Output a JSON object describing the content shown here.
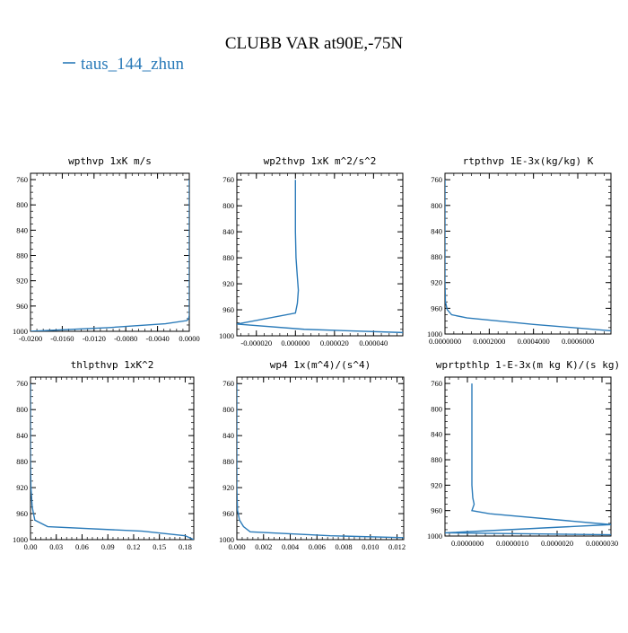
{
  "title": "CLUBB VAR at90E,-75N",
  "legend": {
    "label": "taus_144_zhun",
    "color": "#2b7bb9"
  },
  "chart_data": [
    {
      "type": "line",
      "title": "wpthvp  1xK m/s",
      "ylim": [
        1000,
        750
      ],
      "yticks": [
        "760",
        "800",
        "840",
        "880",
        "920",
        "960",
        "1000"
      ],
      "xlim": [
        -0.02,
        0.0
      ],
      "xticks": [
        {
          "value": -0.02,
          "label": "-0.0200"
        },
        {
          "value": -0.016,
          "label": "-0.0160"
        },
        {
          "value": -0.012,
          "label": "-0.0120"
        },
        {
          "value": -0.008,
          "label": "-0.0080"
        },
        {
          "value": -0.004,
          "label": "-0.0040"
        },
        {
          "value": 0.0,
          "label": "0.0000"
        }
      ],
      "series": [
        {
          "x": [
            0.0,
            0.0,
            0.0,
            0.0,
            0.0,
            0.0,
            0.0,
            -0.0001,
            -0.0003,
            -0.003,
            -0.01,
            -0.02
          ],
          "y": [
            760,
            800,
            840,
            880,
            920,
            960,
            975,
            980,
            983,
            988,
            994,
            1000
          ]
        }
      ]
    },
    {
      "type": "line",
      "title": "wp2thvp  1xK m^2/s^2",
      "ylim": [
        1000,
        750
      ],
      "yticks": [
        "760",
        "800",
        "840",
        "880",
        "920",
        "960",
        "1000"
      ],
      "xlim": [
        -3e-05,
        5.5e-05
      ],
      "xticks": [
        {
          "value": -2e-05,
          "label": "-0.000020"
        },
        {
          "value": 0.0,
          "label": "0.000000"
        },
        {
          "value": 2e-05,
          "label": "0.000020"
        },
        {
          "value": 4e-05,
          "label": "0.000040"
        }
      ],
      "series": [
        {
          "x": [
            0.0,
            0.0,
            0.0,
            3e-07,
            1e-06,
            1.5e-06,
            1e-06,
            0.0,
            -3e-05,
            4.5e-06,
            5.5e-05
          ],
          "y": [
            760,
            800,
            840,
            880,
            910,
            930,
            950,
            965,
            982,
            990,
            995
          ]
        }
      ]
    },
    {
      "type": "line",
      "title": "rtpthvp  1E-3x(kg/kg) K",
      "ylim": [
        1000,
        750
      ],
      "yticks": [
        "760",
        "800",
        "840",
        "880",
        "920",
        "960",
        "1000"
      ],
      "xlim": [
        0.0,
        0.00075
      ],
      "xticks": [
        {
          "value": 0.0,
          "label": "0.0000000"
        },
        {
          "value": 0.0002,
          "label": "0.0002000"
        },
        {
          "value": 0.0004,
          "label": "0.0004000"
        },
        {
          "value": 0.0006,
          "label": "0.0006000"
        }
      ],
      "series": [
        {
          "x": [
            0.0,
            0.0,
            0.0,
            0.0,
            0.0,
            2e-06,
            1e-05,
            3e-05,
            0.0001,
            0.0004,
            0.00075
          ],
          "y": [
            760,
            800,
            840,
            880,
            920,
            950,
            962,
            970,
            975,
            985,
            995
          ]
        }
      ]
    },
    {
      "type": "line",
      "title": "thlpthvp  1xK^2",
      "ylim": [
        1000,
        750
      ],
      "yticks": [
        "760",
        "800",
        "840",
        "880",
        "920",
        "960",
        "1000"
      ],
      "xlim": [
        0.0,
        0.19
      ],
      "xticks": [
        {
          "value": 0.0,
          "label": "0.00"
        },
        {
          "value": 0.03,
          "label": "0.03"
        },
        {
          "value": 0.06,
          "label": "0.06"
        },
        {
          "value": 0.09,
          "label": "0.09"
        },
        {
          "value": 0.12,
          "label": "0.12"
        },
        {
          "value": 0.15,
          "label": "0.15"
        },
        {
          "value": 0.18,
          "label": "0.18"
        }
      ],
      "series": [
        {
          "x": [
            0.0,
            0.0,
            0.0,
            0.0,
            0.0005,
            0.002,
            0.005,
            0.02,
            0.13,
            0.18,
            0.19
          ],
          "y": [
            760,
            800,
            840,
            880,
            920,
            950,
            970,
            980,
            987,
            994,
            1000
          ]
        }
      ]
    },
    {
      "type": "line",
      "title": "wp4  1x(m^4)/(s^4)",
      "ylim": [
        1000,
        750
      ],
      "yticks": [
        "760",
        "800",
        "840",
        "880",
        "920",
        "960",
        "1000"
      ],
      "xlim": [
        0.0,
        0.0125
      ],
      "xticks": [
        {
          "value": 0.0,
          "label": "0.000"
        },
        {
          "value": 0.002,
          "label": "0.002"
        },
        {
          "value": 0.004,
          "label": "0.004"
        },
        {
          "value": 0.006,
          "label": "0.006"
        },
        {
          "value": 0.008,
          "label": "0.008"
        },
        {
          "value": 0.01,
          "label": "0.010"
        },
        {
          "value": 0.012,
          "label": "0.012"
        }
      ],
      "series": [
        {
          "x": [
            0.0,
            0.0,
            0.0,
            0.0,
            0.0,
            5e-05,
            0.0002,
            0.0005,
            0.001,
            0.007,
            0.0125
          ],
          "y": [
            760,
            800,
            840,
            880,
            920,
            955,
            970,
            980,
            988,
            994,
            997
          ]
        }
      ]
    },
    {
      "type": "line",
      "title": "wprtpthlp  1-E-3x(m kg K)/(s kg)",
      "ylim": [
        1000,
        750
      ],
      "yticks": [
        "760",
        "800",
        "840",
        "880",
        "920",
        "960",
        "1000"
      ],
      "xlim": [
        -5e-07,
        3.2e-06
      ],
      "xticks": [
        {
          "value": 1e-06,
          "label": "0.0000010"
        },
        {
          "value": 2e-06,
          "label": "0.0000020"
        },
        {
          "value": 3e-06,
          "label": "0.0000030"
        },
        {
          "value": 0.0,
          "label": "0.0000000"
        }
      ],
      "series": [
        {
          "x": [
            1e-07,
            1e-07,
            1e-07,
            1e-07,
            1e-07,
            1.2e-07,
            1.5e-07,
            1e-07,
            5e-07,
            3.2e-06,
            -5e-07,
            3.2e-06
          ],
          "y": [
            760,
            800,
            840,
            880,
            920,
            940,
            950,
            960,
            965,
            982,
            995,
            998
          ]
        }
      ]
    }
  ]
}
